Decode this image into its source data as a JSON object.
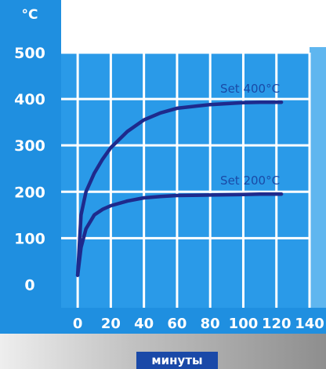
{
  "chart_data": {
    "type": "line",
    "unit_label": "°C",
    "xlabel": "минуты",
    "ylabel": "",
    "x_ticks": [
      "0",
      "20",
      "40",
      "60",
      "80",
      "100",
      "120",
      "140"
    ],
    "y_ticks": [
      "0",
      "100",
      "200",
      "300",
      "400",
      "500"
    ],
    "xlim": [
      -10,
      140
    ],
    "ylim": [
      -50,
      500
    ],
    "grid": true,
    "series": [
      {
        "name": "Set 400°C",
        "x": [
          0,
          2,
          5,
          10,
          15,
          20,
          30,
          40,
          50,
          60,
          80,
          100,
          110,
          120,
          123
        ],
        "y": [
          20,
          150,
          200,
          240,
          270,
          295,
          330,
          355,
          370,
          380,
          388,
          392,
          393,
          393,
          393
        ]
      },
      {
        "name": "Set 200°C",
        "x": [
          0,
          2,
          5,
          10,
          15,
          20,
          30,
          40,
          50,
          60,
          80,
          100,
          110,
          120,
          123
        ],
        "y": [
          20,
          80,
          120,
          150,
          162,
          170,
          180,
          187,
          190,
          192,
          193,
          194,
          195,
          195,
          195
        ]
      }
    ],
    "colors": {
      "frame": "#1f8fe0",
      "plot": "#2a9ae8",
      "grid": "#ffffff",
      "line": "#1e2a8c",
      "label": "#1a4aa6",
      "xlabel_bg": "#1a49a8"
    }
  }
}
